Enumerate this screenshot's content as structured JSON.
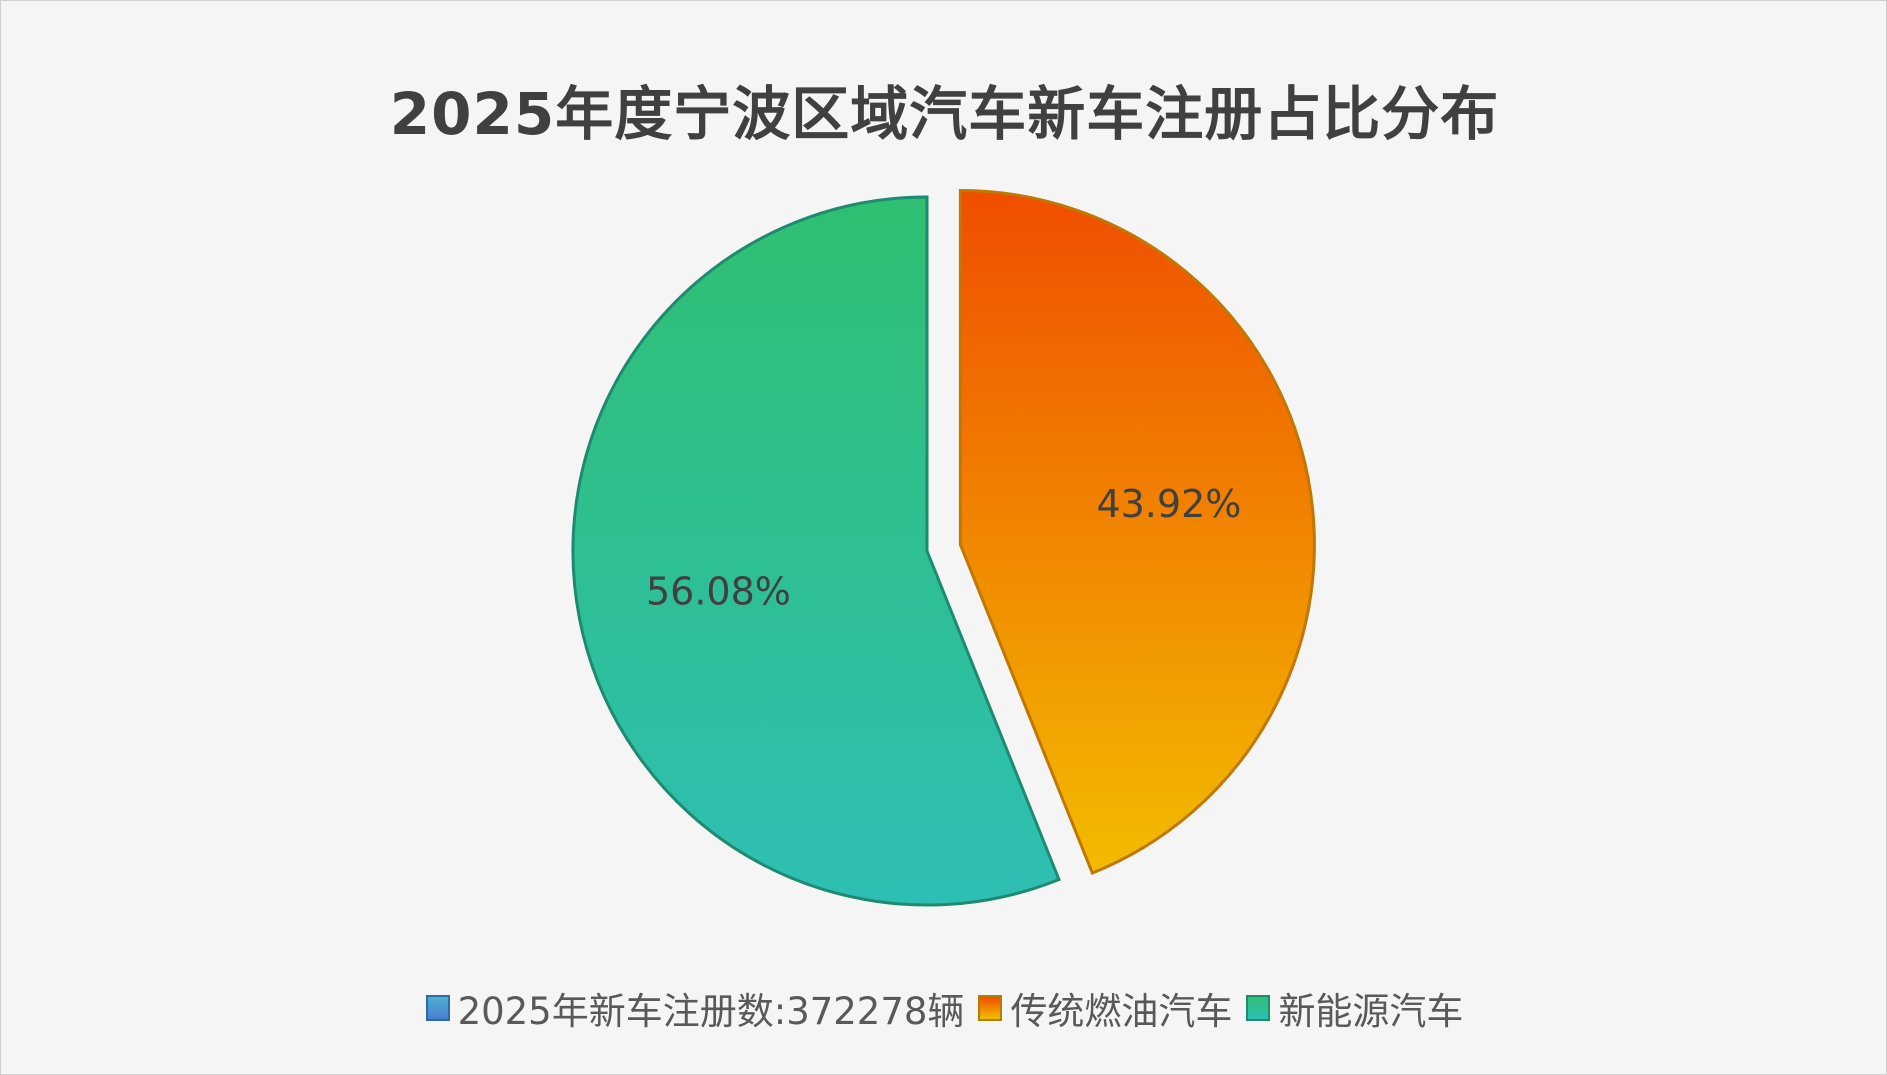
{
  "chart_data": {
    "type": "pie",
    "title": "2025年度宁波区域汽车新车注册占比分布",
    "legend": [
      "2025年新车注册数:372278辆",
      "传统燃油汽车",
      "新能源汽车"
    ],
    "legend_position": "bottom",
    "slices": [
      {
        "name": "传统燃油汽车",
        "value": 43.92,
        "label": "43.92%",
        "exploded": true,
        "color_top": "#f04e00",
        "color_bottom": "#f2bc00",
        "stroke": "#c07800"
      },
      {
        "name": "新能源汽车",
        "value": 56.08,
        "label": "56.08%",
        "exploded": false,
        "color_top": "#2fbf71",
        "color_bottom": "#2ebfb5",
        "stroke": "#1e8a70"
      }
    ],
    "legend_colors": [
      "#4a8fd0",
      "#f08000",
      "#2ebf9a"
    ]
  }
}
